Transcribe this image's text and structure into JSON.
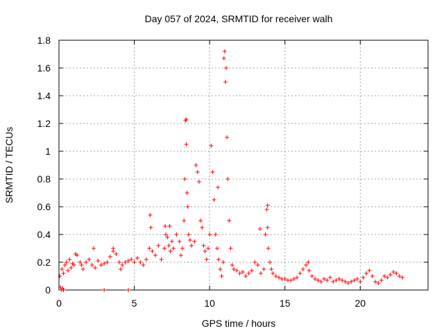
{
  "chart_data": {
    "type": "scatter",
    "title": "Day 057 of 2024, SRMTID for receiver walh",
    "xlabel": "GPS time / hours",
    "ylabel": "SRMTID / TECUs",
    "xlim": [
      0,
      24.5
    ],
    "ylim": [
      0,
      1.8
    ],
    "xticks": [
      0,
      5,
      10,
      15,
      20
    ],
    "yticks": [
      0,
      0.2,
      0.4,
      0.6,
      0.8,
      1,
      1.2,
      1.4,
      1.6,
      1.8
    ],
    "ytick_labels": [
      "0",
      "0.2",
      "0.4",
      "0.6",
      "0.8",
      "1",
      "1.2",
      "1.4",
      "1.6",
      "1.8"
    ],
    "grid": true,
    "marker": "+",
    "color": "#ff0000",
    "series": [
      {
        "name": "SRMTID",
        "x": [
          0.05,
          0.1,
          0.2,
          0.3,
          0.4,
          0.5,
          0.6,
          0.7,
          0.8,
          0.9,
          1.0,
          1.2,
          1.4,
          1.5,
          1.6,
          1.8,
          2.0,
          2.2,
          2.4,
          2.6,
          2.8,
          3.0,
          3.2,
          3.4,
          3.6,
          3.8,
          4.0,
          4.2,
          4.4,
          4.6,
          4.8,
          5.0,
          5.2,
          5.4,
          5.6,
          5.8,
          6.0,
          6.1,
          6.2,
          6.4,
          6.6,
          6.8,
          7.0,
          7.1,
          7.2,
          7.3,
          7.4,
          7.5,
          7.6,
          7.8,
          8.0,
          8.1,
          8.2,
          8.3,
          8.35,
          8.4,
          8.45,
          8.5,
          8.55,
          8.6,
          8.7,
          8.8,
          9.0,
          9.1,
          9.2,
          9.3,
          9.4,
          9.5,
          9.6,
          9.7,
          9.8,
          9.9,
          10.0,
          10.1,
          10.2,
          10.3,
          10.4,
          10.5,
          10.6,
          10.7,
          10.8,
          10.9,
          11.0,
          11.05,
          11.1,
          11.15,
          11.2,
          11.3,
          11.4,
          11.5,
          11.6,
          11.8,
          12.0,
          12.2,
          12.4,
          12.6,
          12.8,
          13.0,
          13.2,
          13.4,
          13.6,
          13.7,
          13.8,
          13.85,
          13.9,
          14.0,
          14.1,
          14.2,
          14.4,
          14.6,
          14.8,
          15.0,
          15.2,
          15.4,
          15.6,
          15.8,
          16.0,
          16.2,
          16.4,
          16.6,
          16.8,
          17.0,
          17.2,
          17.4,
          17.6,
          17.8,
          18.0,
          18.2,
          18.4,
          18.6,
          18.8,
          19.0,
          19.2,
          19.4,
          19.6,
          19.8,
          20.0,
          20.2,
          20.4,
          20.6,
          20.8,
          21.0,
          21.2,
          21.4,
          21.6,
          21.8,
          22.0,
          22.2,
          22.4,
          22.6,
          22.8,
          0.15,
          0.3,
          0.25,
          3.0,
          4.6,
          3.6,
          1.1,
          2.3,
          4.1,
          6.05,
          7.05,
          7.35,
          8.45,
          10.55,
          10.95,
          13.35,
          13.85,
          16.55
        ],
        "y": [
          0.1,
          0.02,
          0.15,
          0.12,
          0.18,
          0.2,
          0.14,
          0.22,
          0.16,
          0.19,
          0.18,
          0.25,
          0.2,
          0.18,
          0.15,
          0.2,
          0.22,
          0.18,
          0.16,
          0.21,
          0.18,
          0.19,
          0.2,
          0.24,
          0.28,
          0.26,
          0.2,
          0.18,
          0.2,
          0.21,
          0.22,
          0.2,
          0.23,
          0.2,
          0.18,
          0.22,
          0.3,
          0.45,
          0.28,
          0.25,
          0.32,
          0.22,
          0.3,
          0.4,
          0.38,
          0.32,
          0.28,
          0.35,
          0.3,
          0.4,
          0.35,
          0.25,
          0.3,
          0.5,
          0.8,
          1.22,
          1.05,
          0.7,
          0.6,
          0.4,
          0.36,
          0.32,
          0.35,
          0.9,
          0.85,
          0.78,
          0.5,
          0.45,
          0.32,
          0.28,
          0.22,
          0.3,
          0.4,
          1.04,
          0.85,
          0.65,
          0.4,
          0.3,
          0.22,
          0.15,
          0.1,
          0.2,
          1.72,
          1.5,
          1.6,
          1.1,
          0.8,
          0.5,
          0.3,
          0.18,
          0.15,
          0.14,
          0.12,
          0.13,
          0.1,
          0.12,
          0.14,
          0.2,
          0.18,
          0.12,
          0.15,
          0.4,
          0.58,
          0.45,
          0.3,
          0.2,
          0.15,
          0.12,
          0.1,
          0.09,
          0.08,
          0.08,
          0.07,
          0.07,
          0.08,
          0.09,
          0.12,
          0.15,
          0.18,
          0.14,
          0.1,
          0.08,
          0.07,
          0.06,
          0.08,
          0.07,
          0.09,
          0.06,
          0.07,
          0.08,
          0.07,
          0.06,
          0.05,
          0.06,
          0.07,
          0.08,
          0.06,
          0.09,
          0.12,
          0.14,
          0.1,
          0.06,
          0.05,
          0.07,
          0.1,
          0.09,
          0.11,
          0.13,
          0.12,
          0.1,
          0.09,
          0.0,
          0.0,
          0.01,
          0.0,
          0.0,
          0.3,
          0.26,
          0.3,
          0.15,
          0.54,
          0.46,
          0.46,
          1.23,
          0.74,
          1.67,
          0.44,
          0.61,
          0.2
        ]
      }
    ]
  }
}
